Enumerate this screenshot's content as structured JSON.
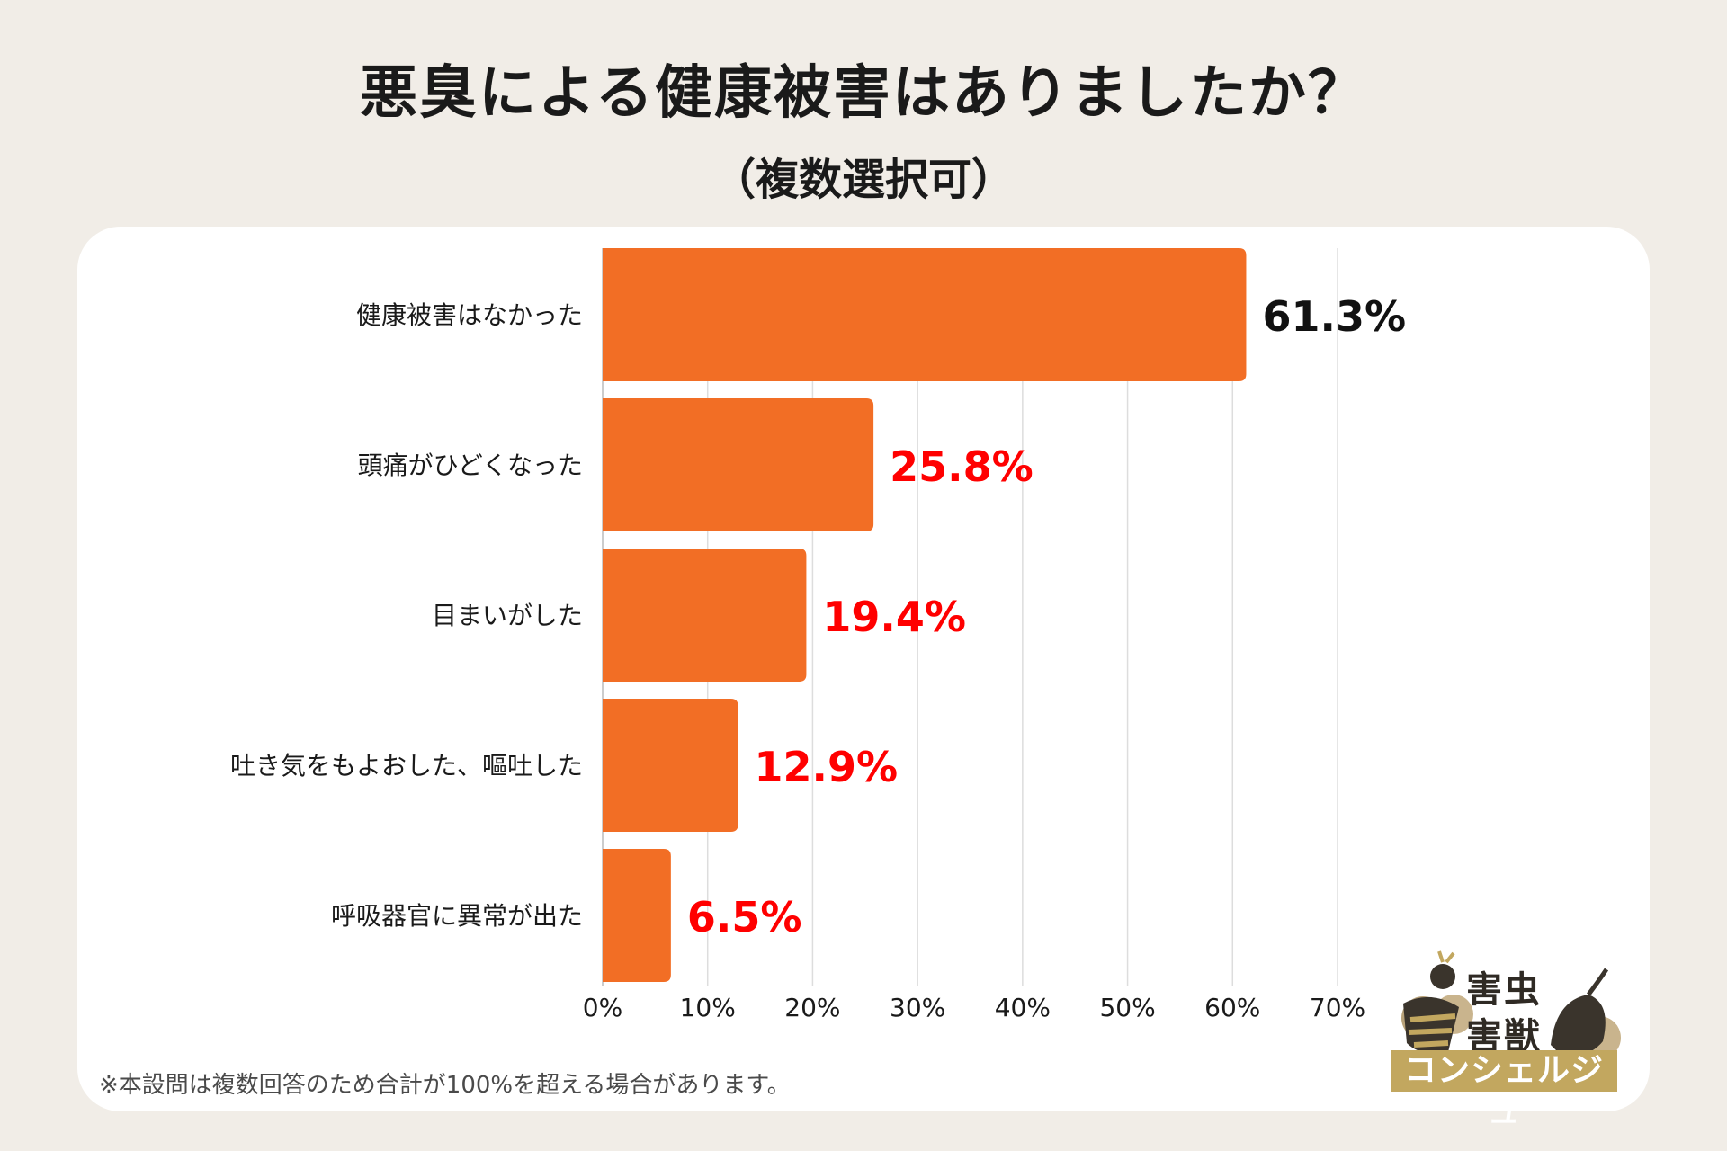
{
  "title": "悪臭による健康被害はありましたか？",
  "subtitle": "（複数選択可）",
  "footnote": "※本設問は複数回答のため合計が100%を超える場合があります。",
  "logo": {
    "line1": "害虫",
    "line2": "害獣",
    "band": "コンシェルジュ"
  },
  "colors": {
    "background": "#f1ede7",
    "bar": "#f26e25",
    "label_first": "#111111",
    "label_highlight": "#ff0000",
    "grid": "#dddddd"
  },
  "chart_data": {
    "type": "bar",
    "orientation": "horizontal",
    "categories": [
      "健康被害はなかった",
      "頭痛がひどくなった",
      "目まいがした",
      "吐き気をもよおした、嘔吐した",
      "呼吸器官に異常が出た"
    ],
    "values": [
      61.3,
      25.8,
      19.4,
      12.9,
      6.5
    ],
    "value_labels": [
      "61.3%",
      "25.8%",
      "19.4%",
      "12.9%",
      "6.5%"
    ],
    "xlim": [
      0,
      70
    ],
    "xticks": [
      0,
      10,
      20,
      30,
      40,
      50,
      60,
      70
    ],
    "xtick_labels": [
      "0%",
      "10%",
      "20%",
      "30%",
      "40%",
      "50%",
      "60%",
      "70%"
    ],
    "grid": true,
    "legend": "none"
  }
}
